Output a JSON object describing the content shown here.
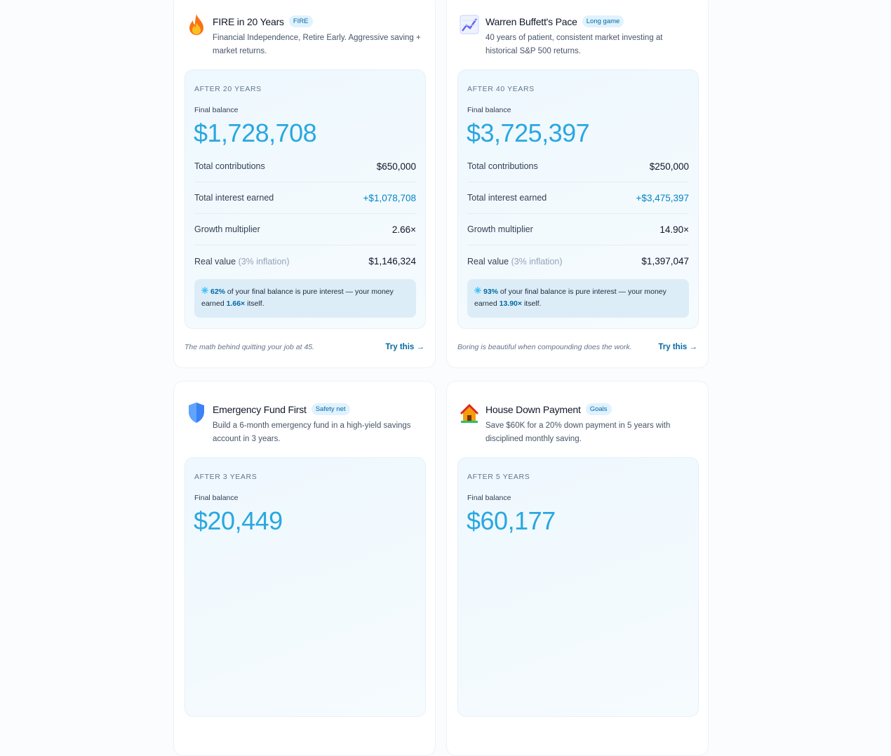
{
  "cards": [
    {
      "title": "FIRE in 20 Years",
      "badge": "FIRE",
      "description": "Financial Independence, Retire Early. Aggressive saving + market returns.",
      "period": "AFTER 20 YEARS",
      "final_label": "Final balance",
      "final_value": "$1,728,708",
      "rows": [
        {
          "label": "Total contributions",
          "value": "$650,000"
        },
        {
          "label": "Total interest earned",
          "value": "+$1,078,708"
        },
        {
          "label": "Growth multiplier",
          "value": "2.66×"
        },
        {
          "label": "Real value",
          "note": "(3% inflation)",
          "value": "$1,146,324"
        }
      ],
      "insight": {
        "percent": "62%",
        "text": " of your final balance is pure interest — your money earned ",
        "multiple": "1.66×",
        "end": " itself."
      },
      "tagline": "The math behind quitting your job at 45.",
      "link": "Try this →"
    },
    {
      "title": "Warren Buffett's Pace",
      "badge": "Long game",
      "description": "40 years of patient, consistent market investing at historical S&P 500 returns.",
      "period": "AFTER 40 YEARS",
      "final_label": "Final balance",
      "final_value": "$3,725,397",
      "rows": [
        {
          "label": "Total contributions",
          "value": "$250,000"
        },
        {
          "label": "Total interest earned",
          "value": "+$3,475,397"
        },
        {
          "label": "Growth multiplier",
          "value": "14.90×"
        },
        {
          "label": "Real value",
          "note": "(3% inflation)",
          "value": "$1,397,047"
        }
      ],
      "insight": {
        "percent": "93%",
        "text": " of your final balance is pure interest — your money earned ",
        "multiple": "13.90×",
        "end": " itself."
      },
      "tagline": "Boring is beautiful when compounding does the work.",
      "link": "Try this →"
    },
    {
      "title": "Emergency Fund First",
      "badge": "Safety net",
      "description": "Build a 6-month emergency fund in a high-yield savings account in 3 years.",
      "period": "AFTER 3 YEARS",
      "final_label": "Final balance",
      "final_value": "$20,449"
    },
    {
      "title": "House Down Payment",
      "badge": "Goals",
      "description": "Save $60K for a 20% down payment in 5 years with disciplined monthly saving.",
      "period": "AFTER 5 YEARS",
      "final_label": "Final balance",
      "final_value": "$60,177"
    }
  ]
}
